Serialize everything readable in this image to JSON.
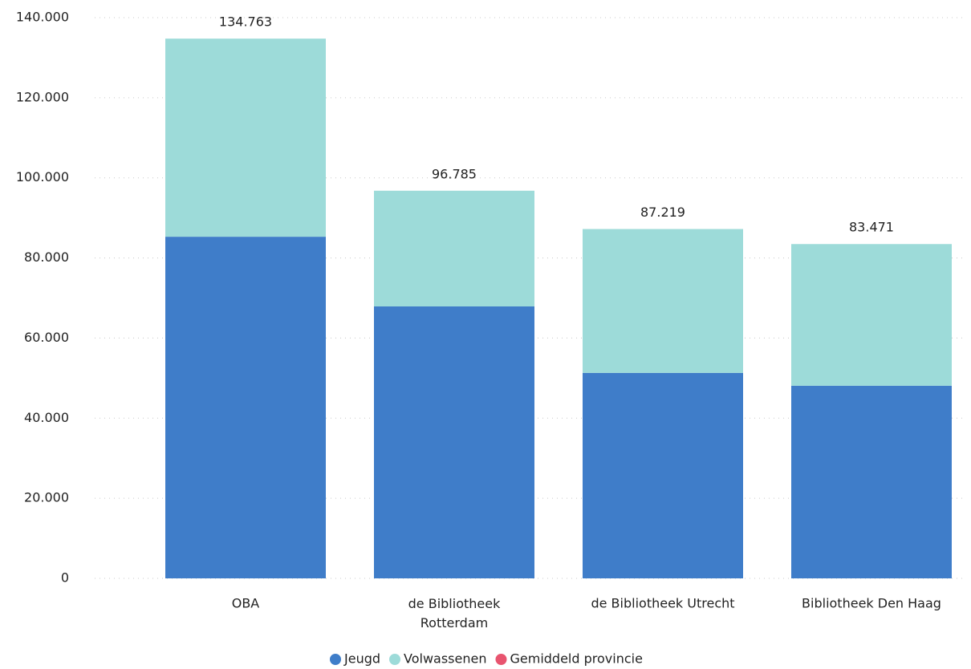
{
  "chart_data": {
    "type": "stacked-bar",
    "categories": [
      "OBA",
      "de Bibliotheek Rotterdam",
      "de Bibliotheek Utrecht",
      "Bibliotheek Den Haag"
    ],
    "series": [
      {
        "name": "Jeugd",
        "color": "#3f7dc9",
        "values": [
          85300,
          67900,
          51300,
          48100
        ]
      },
      {
        "name": "Volwassenen",
        "color": "#9ddbd9",
        "values": [
          49463,
          28885,
          35919,
          35371
        ]
      },
      {
        "name": "Gemiddeld provincie",
        "color": "#e8546f",
        "values": [
          null,
          null,
          null,
          null
        ]
      }
    ],
    "totals": {
      "values": [
        134763,
        96785,
        87219,
        83471
      ],
      "value_labels": [
        "134.763",
        "96.785",
        "87.219",
        "83.471"
      ]
    },
    "ylim": [
      0,
      140000
    ],
    "yticks": [
      0,
      {
        "value": 20000,
        "label": "20.000"
      },
      {
        "value": 40000,
        "label": "40.000"
      },
      {
        "value": 60000,
        "label": "60.000"
      },
      {
        "value": 80000,
        "label": "80.000"
      },
      {
        "value": 100000,
        "label": "100.000"
      },
      {
        "value": 120000,
        "label": "120.000"
      },
      {
        "value": 140000,
        "label": "140.000"
      }
    ],
    "grid": true
  }
}
